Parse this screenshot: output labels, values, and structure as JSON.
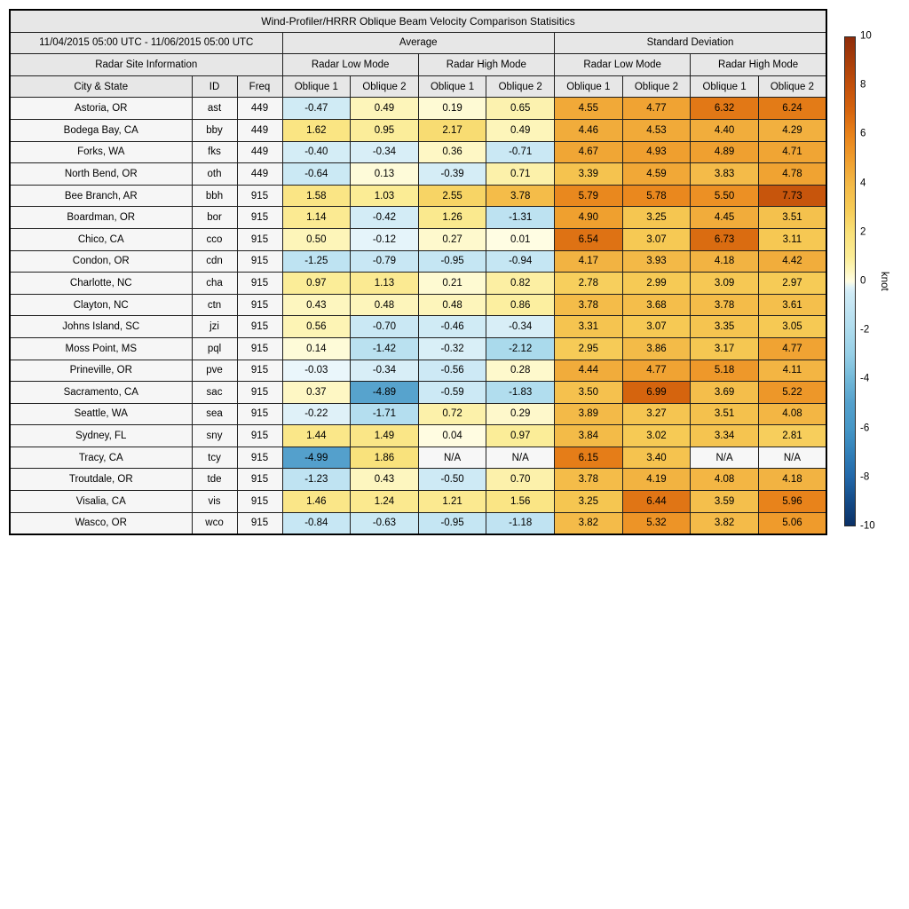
{
  "title": "Wind-Profiler/HRRR Oblique Beam Velocity Comparison Statisitics",
  "date_range": "11/04/2015 05:00 UTC - 11/06/2015 05:00 UTC",
  "sections": {
    "average": "Average",
    "std": "Standard Deviation",
    "site_info": "Radar Site Information"
  },
  "modes": [
    "Radar Low Mode",
    "Radar High Mode",
    "Radar Low Mode",
    "Radar High Mode"
  ],
  "columns": [
    "City & State",
    "ID",
    "Freq",
    "Oblique 1",
    "Oblique 2",
    "Oblique 1",
    "Oblique 2",
    "Oblique 1",
    "Oblique 2",
    "Oblique 1",
    "Oblique 2"
  ],
  "na_text": "N/A",
  "colorbar": {
    "label": "knot",
    "min": -10,
    "max": 10,
    "ticks": [
      10,
      8,
      6,
      4,
      2,
      0,
      -2,
      -4,
      -6,
      -8,
      -10
    ]
  },
  "colors": {
    "header_bg": "#e7e7e7",
    "site_bg": "#f6f6f6",
    "na_bg": "#f7f7f7",
    "border": "#1f1f1f",
    "colormap_positive": [
      [
        0,
        "#fffde4"
      ],
      [
        0.5,
        "#fdf5b9"
      ],
      [
        1,
        "#fbec96"
      ],
      [
        2,
        "#f9e078"
      ],
      [
        3,
        "#f6ca55"
      ],
      [
        4,
        "#f3b846"
      ],
      [
        5,
        "#ef9d2d"
      ],
      [
        6,
        "#e8821a"
      ],
      [
        7,
        "#d5640e"
      ],
      [
        8,
        "#c2500b"
      ],
      [
        9,
        "#a83e0a"
      ],
      [
        10,
        "#8e2c0a"
      ]
    ],
    "colormap_negative": [
      [
        0,
        "#ecf7fb"
      ],
      [
        0.5,
        "#ceeaf5"
      ],
      [
        1,
        "#c4e5f3"
      ],
      [
        2,
        "#addbed"
      ],
      [
        3,
        "#96cfe6"
      ],
      [
        4,
        "#72b8d8"
      ],
      [
        5,
        "#54a0cc"
      ],
      [
        6,
        "#4697c6"
      ],
      [
        7,
        "#3280b9"
      ],
      [
        8,
        "#2268a9"
      ],
      [
        9,
        "#144b87"
      ],
      [
        10,
        "#0a3066"
      ]
    ]
  },
  "chart_data": {
    "type": "heatmap",
    "title": "Wind-Profiler/HRRR Oblique Beam Velocity Comparison Statisitics",
    "value_columns": [
      "Average Radar Low Mode Oblique 1",
      "Average Radar Low Mode Oblique 2",
      "Average Radar High Mode Oblique 1",
      "Average Radar High Mode Oblique 2",
      "Std Radar Low Mode Oblique 1",
      "Std Radar Low Mode Oblique 2",
      "Std Radar High Mode Oblique 1",
      "Std Radar High Mode Oblique 2"
    ],
    "value_range": [
      -10,
      10
    ],
    "colorbar_label": "knot",
    "rows": [
      {
        "city": "Astoria, OR",
        "id": "ast",
        "freq": "449",
        "values": [
          -0.47,
          0.49,
          0.19,
          0.65,
          4.55,
          4.77,
          6.32,
          6.24
        ]
      },
      {
        "city": "Bodega Bay, CA",
        "id": "bby",
        "freq": "449",
        "values": [
          1.62,
          0.95,
          2.17,
          0.49,
          4.46,
          4.53,
          4.4,
          4.29
        ]
      },
      {
        "city": "Forks, WA",
        "id": "fks",
        "freq": "449",
        "values": [
          -0.4,
          -0.34,
          0.36,
          -0.71,
          4.67,
          4.93,
          4.89,
          4.71
        ]
      },
      {
        "city": "North Bend, OR",
        "id": "oth",
        "freq": "449",
        "values": [
          -0.64,
          0.13,
          -0.39,
          0.71,
          3.39,
          4.59,
          3.83,
          4.78
        ]
      },
      {
        "city": "Bee Branch, AR",
        "id": "bbh",
        "freq": "915",
        "values": [
          1.58,
          1.03,
          2.55,
          3.78,
          5.79,
          5.78,
          5.5,
          7.73
        ]
      },
      {
        "city": "Boardman, OR",
        "id": "bor",
        "freq": "915",
        "values": [
          1.14,
          -0.42,
          1.26,
          -1.31,
          4.9,
          3.25,
          4.45,
          3.51
        ]
      },
      {
        "city": "Chico, CA",
        "id": "cco",
        "freq": "915",
        "values": [
          0.5,
          -0.12,
          0.27,
          0.01,
          6.54,
          3.07,
          6.73,
          3.11
        ]
      },
      {
        "city": "Condon, OR",
        "id": "cdn",
        "freq": "915",
        "values": [
          -1.25,
          -0.79,
          -0.95,
          -0.94,
          4.17,
          3.93,
          4.18,
          4.42
        ]
      },
      {
        "city": "Charlotte, NC",
        "id": "cha",
        "freq": "915",
        "values": [
          0.97,
          1.13,
          0.21,
          0.82,
          2.78,
          2.99,
          3.09,
          2.97
        ]
      },
      {
        "city": "Clayton, NC",
        "id": "ctn",
        "freq": "915",
        "values": [
          0.43,
          0.48,
          0.48,
          0.86,
          3.78,
          3.68,
          3.78,
          3.61
        ]
      },
      {
        "city": "Johns Island, SC",
        "id": "jzi",
        "freq": "915",
        "values": [
          0.56,
          -0.7,
          -0.46,
          -0.34,
          3.31,
          3.07,
          3.35,
          3.05
        ]
      },
      {
        "city": "Moss Point, MS",
        "id": "pql",
        "freq": "915",
        "values": [
          0.14,
          -1.42,
          -0.32,
          -2.12,
          2.95,
          3.86,
          3.17,
          4.77
        ]
      },
      {
        "city": "Prineville, OR",
        "id": "pve",
        "freq": "915",
        "values": [
          -0.03,
          -0.34,
          -0.56,
          0.28,
          4.44,
          4.77,
          5.18,
          4.11
        ]
      },
      {
        "city": "Sacramento, CA",
        "id": "sac",
        "freq": "915",
        "values": [
          0.37,
          -4.89,
          -0.59,
          -1.83,
          3.5,
          6.99,
          3.69,
          5.22
        ]
      },
      {
        "city": "Seattle, WA",
        "id": "sea",
        "freq": "915",
        "values": [
          -0.22,
          -1.71,
          0.72,
          0.29,
          3.89,
          3.27,
          3.51,
          4.08
        ]
      },
      {
        "city": "Sydney, FL",
        "id": "sny",
        "freq": "915",
        "values": [
          1.44,
          1.49,
          0.04,
          0.97,
          3.84,
          3.02,
          3.34,
          2.81
        ]
      },
      {
        "city": "Tracy, CA",
        "id": "tcy",
        "freq": "915",
        "values": [
          -4.99,
          1.86,
          null,
          null,
          6.15,
          3.4,
          null,
          null
        ]
      },
      {
        "city": "Troutdale, OR",
        "id": "tde",
        "freq": "915",
        "values": [
          -1.23,
          0.43,
          -0.5,
          0.7,
          3.78,
          4.19,
          4.08,
          4.18
        ]
      },
      {
        "city": "Visalia, CA",
        "id": "vis",
        "freq": "915",
        "values": [
          1.46,
          1.24,
          1.21,
          1.56,
          3.25,
          6.44,
          3.59,
          5.96
        ]
      },
      {
        "city": "Wasco, OR",
        "id": "wco",
        "freq": "915",
        "values": [
          -0.84,
          -0.63,
          -0.95,
          -1.18,
          3.82,
          5.32,
          3.82,
          5.06
        ]
      }
    ]
  }
}
